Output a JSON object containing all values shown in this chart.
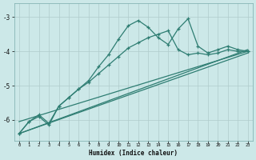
{
  "xlabel": "Humidex (Indice chaleur)",
  "background_color": "#cce8e8",
  "grid_color": "#b0cccc",
  "line_color": "#2e7d72",
  "xlim": [
    -0.5,
    23.5
  ],
  "ylim": [
    -6.6,
    -2.6
  ],
  "yticks": [
    -6,
    -5,
    -4,
    -3
  ],
  "xticks": [
    0,
    1,
    2,
    3,
    4,
    5,
    6,
    7,
    8,
    9,
    10,
    11,
    12,
    13,
    14,
    15,
    16,
    17,
    18,
    19,
    20,
    21,
    22,
    23
  ],
  "curve1_x": [
    0,
    1,
    2,
    3,
    4,
    5,
    6,
    7,
    8,
    9,
    10,
    11,
    12,
    13,
    14,
    15,
    16,
    17,
    18,
    19,
    20,
    21,
    22,
    23
  ],
  "curve1_y": [
    -6.4,
    -6.05,
    -5.9,
    -6.15,
    -5.6,
    -5.35,
    -5.1,
    -4.85,
    -4.45,
    -4.1,
    -3.65,
    -3.25,
    -3.1,
    -3.3,
    -3.6,
    -3.8,
    -3.35,
    -3.05,
    -3.85,
    -4.05,
    -3.95,
    -3.85,
    -3.95,
    -4.0
  ],
  "curve2_x": [
    0,
    1,
    2,
    3,
    4,
    5,
    6,
    7,
    8,
    9,
    10,
    11,
    12,
    13,
    14,
    15,
    16,
    17,
    18,
    19,
    20,
    21,
    22,
    23
  ],
  "curve2_y": [
    -6.4,
    -6.05,
    -5.85,
    -6.1,
    -5.6,
    -5.35,
    -5.1,
    -4.9,
    -4.65,
    -4.4,
    -4.15,
    -3.9,
    -3.75,
    -3.6,
    -3.5,
    -3.4,
    -3.95,
    -4.1,
    -4.05,
    -4.1,
    -4.05,
    -3.95,
    -4.0,
    -4.0
  ],
  "line1_x": [
    0,
    23
  ],
  "line1_y": [
    -6.4,
    -3.95
  ],
  "line2_x": [
    0,
    23
  ],
  "line2_y": [
    -6.4,
    -4.05
  ],
  "line3_x": [
    0,
    23
  ],
  "line3_y": [
    -6.05,
    -4.0
  ]
}
